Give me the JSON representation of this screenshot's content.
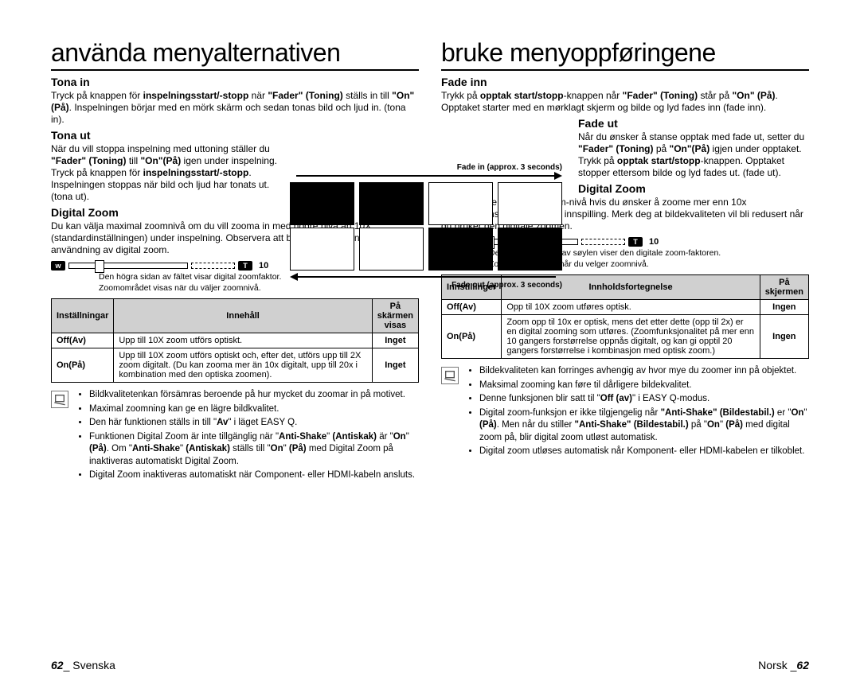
{
  "left": {
    "title": "använda menyalternativen",
    "tona_in_h": "Tona in",
    "tona_in_p": "Tryck på knappen för <b>inspelningsstart/-stopp</b> när <b>\"Fader\" (Toning)</b> ställs in till <b>\"On\"(På)</b>. Inspelningen börjar med en mörk skärm och sedan tonas bild och ljud in. (tona in).",
    "tona_ut_h": "Tona ut",
    "tona_ut_p": "När du vill stoppa inspelning med uttoning ställer du <b>\"Fader\" (Toning)</b> till <b>\"On\"(På)</b> igen under inspelning. Tryck på knappen för <b>inspelningsstart/-stopp</b>.<br>Inspelningen stoppas när bild och ljud har tonats ut. (tona ut).",
    "dz_h": "Digital Zoom",
    "dz_p": "Du kan välja maximal zoomnivå om du vill zooma in med högre nivå än 10X (standardinställningen) under inspelning. Observera att bildkvaliteten sänks vid användning av digital zoom.",
    "zoom_caption": "Den högra sidan av fältet visar digital zoomfaktor.<br>Zoomområdet visas när du väljer zoomnivå.",
    "th1": "Inställningar",
    "th2": "Innehåll",
    "th3": "På skärmen visas",
    "r1c1": "Off(Av)",
    "r1c2": "Upp till 10X zoom utförs optiskt.",
    "r1c3": "Inget",
    "r2c1": "On(På)",
    "r2c2": "Upp till 10X zoom utförs optiskt och, efter det, utförs upp till 2X zoom digitalt. (Du kan zooma mer än 10x digitalt, upp till 20x i kombination med den optiska zoomen).",
    "r2c3": "Inget",
    "notes": [
      "Bildkvalitetenkan försämras beroende på hur mycket du zoomar in på motivet.",
      "Maximal zoomning kan ge en lägre bildkvalitet.",
      "Den här funktionen ställs in till \"<b>Av</b>\" i läget EASY Q.",
      "Funktionen Digital Zoom är inte tillgänglig när \"<b>Anti-Shake</b>\" <b>(Antiskak)</b> är \"<b>On</b>\" <b>(På)</b>. Om \"<b>Anti-Shake</b>\" <b>(Antiskak)</b> ställs till \"<b>On</b>\" <b>(På)</b> med Digital Zoom på inaktiveras automatiskt Digital Zoom.",
      "Digital Zoom inaktiveras automatiskt när Component- eller HDMI-kabeln ansluts."
    ]
  },
  "right": {
    "title": "bruke menyoppføringene",
    "fade_in_h": "Fade inn",
    "fade_in_p": "Trykk på <b>opptak start/stopp</b>-knappen når <b>\"Fader\" (Toning)</b> står på <b>\"On\" (På)</b>. Opptaket starter med en mørklagt skjerm og bilde og lyd fades inn (fade inn).",
    "fade_ut_h": "Fade ut",
    "fade_ut_p": "Når du ønsker å stanse opptak med fade ut, setter du <b>\"Fader\" (Toning)</b> på <b>\"On\"(På)</b> igjen under opptaket. Trykk på <b>opptak start/stopp</b>-knappen. Opptaket stopper ettersom bilde og lyd fades ut. (fade ut).",
    "dz_h": "Digital Zoom",
    "dz_p": "Du kan velge maksimal zoom-nivå hvis du ønsker å zoome mer enn 10x (standardinnstillingen) under innspilling. Merk deg at bildekvaliteten vil bli redusert når du bruker den digitale zoomen.",
    "zoom_caption": "Denne høyre siden av søylen viser den digitale zoom-faktoren.<br>Zoom-sonen vises når du velger zoomnivå.",
    "th1": "Innstillinger",
    "th2": "Innholdsfortegnelse",
    "th3": "På skjermen",
    "r1c1": "Off(Av)",
    "r1c2": "Opp til 10X zoom utføres optisk.",
    "r1c3": "Ingen",
    "r2c1": "On(På)",
    "r2c2": "Zoom opp til 10x er optisk, mens det etter dette (opp til 2x) er en digital zooming som utføres. (Zoomfunksjonalitet på mer enn 10 gangers forstørrelse oppnås digitalt, og kan gi opptil 20 gangers forstørrelse i kombinasjon med optisk zoom.)",
    "r2c3": "Ingen",
    "notes": [
      "Bildekvaliteten kan forringes avhengig av hvor mye du zoomer inn på objektet.",
      "Maksimal zooming kan føre til dårligere bildekvalitet.",
      "Denne funksjonen blir satt til \"<b>Off (av)</b>\" i EASY Q-modus.",
      "Digital zoom-funksjon er ikke tilgjengelig når <b>\"Anti-Shake\" (Bildestabil.)</b> er \"<b>On</b>\" <b>(På)</b>. Men når du stiller <b>\"Anti-Shake\" (Bildestabil.)</b> på \"<b>On</b>\" <b>(På)</b> med digital zoom på, blir digital zoom utløst automatisk.",
      "Digital zoom utløses automatisk når Komponent- eller HDMI-kabelen er tilkoblet."
    ]
  },
  "diagram": {
    "fade_in_label": "Fade in (approx. 3 seconds)",
    "fade_out_label": "Fade out (approx. 3 seconds)",
    "w": "w",
    "t": "T",
    "ten": "10"
  },
  "footer": {
    "left_num": "62",
    "left_lang": "Svenska",
    "right_lang": "Norsk",
    "right_num": "62"
  }
}
